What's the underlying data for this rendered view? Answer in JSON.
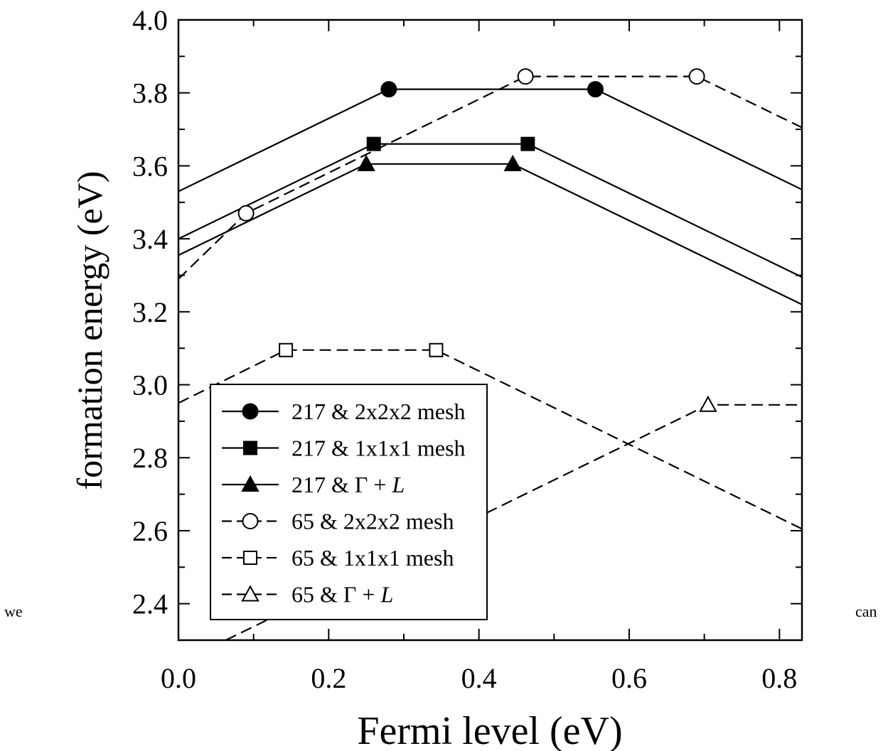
{
  "side_text": {
    "left": "we",
    "right": "can"
  },
  "chart_data": {
    "type": "line",
    "title": "",
    "xlabel": "Fermi level (eV)",
    "ylabel": "formation energy (eV)",
    "xlim": [
      0.0,
      0.83
    ],
    "ylim": [
      2.3,
      4.0
    ],
    "xticks": [
      "0.0",
      "0.2",
      "0.4",
      "0.6",
      "0.8"
    ],
    "yticks": [
      "2.4",
      "2.6",
      "2.8",
      "3.0",
      "3.2",
      "3.4",
      "3.6",
      "3.8",
      "4.0"
    ],
    "grid": false,
    "legend_position": "bottom-left",
    "series": [
      {
        "name": "217 & 2x2x2 mesh",
        "line": "solid",
        "marker": "filled-circle",
        "points": [
          [
            0.0,
            3.53
          ],
          [
            0.28,
            3.81
          ],
          [
            0.555,
            3.81
          ],
          [
            0.83,
            3.535
          ]
        ],
        "marker_points": [
          [
            0.28,
            3.81
          ],
          [
            0.555,
            3.81
          ]
        ]
      },
      {
        "name": "217 & 1x1x1 mesh",
        "line": "solid",
        "marker": "filled-square",
        "points": [
          [
            0.0,
            3.4
          ],
          [
            0.26,
            3.66
          ],
          [
            0.465,
            3.66
          ],
          [
            0.83,
            3.295
          ]
        ],
        "marker_points": [
          [
            0.26,
            3.66
          ],
          [
            0.465,
            3.66
          ]
        ]
      },
      {
        "name_prefix": "217 & ",
        "name_symbol": "Γ + ",
        "name_italic": "L",
        "line": "solid",
        "marker": "filled-triangle",
        "points": [
          [
            0.0,
            3.355
          ],
          [
            0.25,
            3.605
          ],
          [
            0.445,
            3.605
          ],
          [
            0.83,
            3.22
          ]
        ],
        "marker_points": [
          [
            0.25,
            3.605
          ],
          [
            0.445,
            3.605
          ]
        ]
      },
      {
        "name": "65 & 2x2x2 mesh",
        "line": "dashed",
        "marker": "open-circle",
        "points": [
          [
            0.0,
            3.29
          ],
          [
            0.09,
            3.47
          ],
          [
            0.462,
            3.845
          ],
          [
            0.69,
            3.845
          ],
          [
            0.83,
            3.705
          ]
        ],
        "marker_points": [
          [
            0.09,
            3.47
          ],
          [
            0.462,
            3.845
          ],
          [
            0.69,
            3.845
          ]
        ]
      },
      {
        "name": "65 & 1x1x1 mesh",
        "line": "dashed",
        "marker": "open-square",
        "points": [
          [
            0.0,
            2.95
          ],
          [
            0.143,
            3.095
          ],
          [
            0.343,
            3.095
          ],
          [
            0.83,
            2.605
          ]
        ],
        "marker_points": [
          [
            0.143,
            3.095
          ],
          [
            0.343,
            3.095
          ]
        ]
      },
      {
        "name_prefix": "65 & ",
        "name_symbol": "Γ + ",
        "name_italic": "L",
        "line": "dashed",
        "marker": "open-triangle",
        "points": [
          [
            0.063,
            2.3
          ],
          [
            0.705,
            2.945
          ],
          [
            0.83,
            2.945
          ]
        ],
        "marker_points": [
          [
            0.705,
            2.945
          ]
        ]
      }
    ]
  }
}
